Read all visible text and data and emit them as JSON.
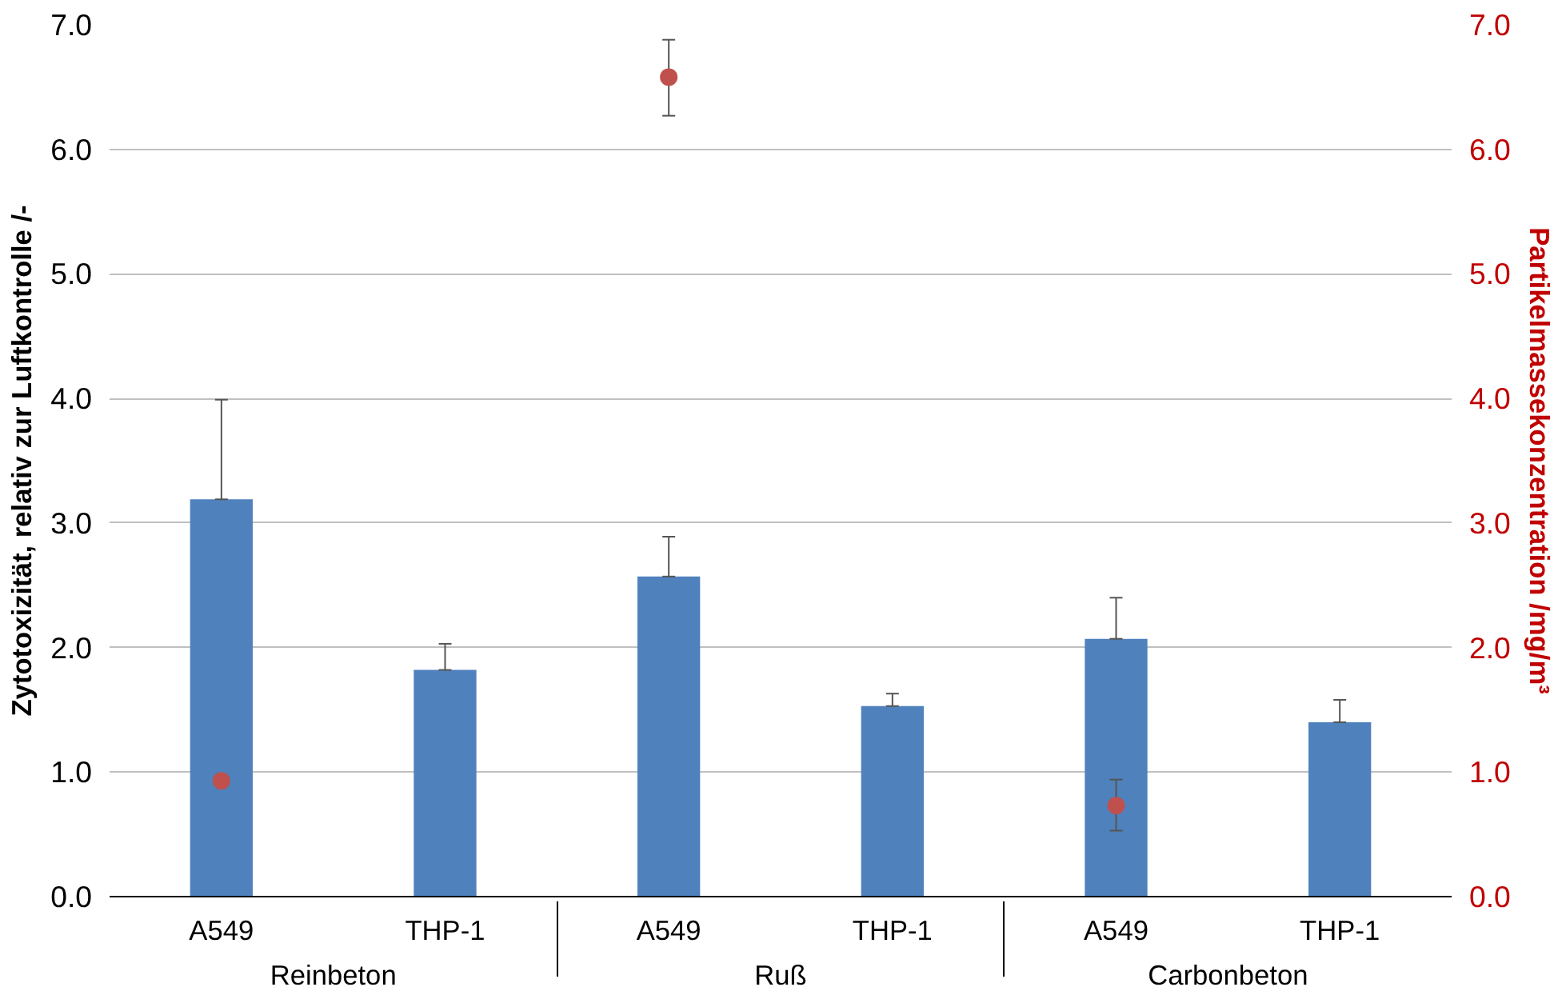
{
  "chart_data": {
    "type": "bar",
    "ylabel": "Zytotoxizität, relativ zur Luftkontrolle /-",
    "y2label": "Partikelmassekonzentration /mg/m³",
    "categories": [
      "A549",
      "THP-1",
      "A549",
      "THP-1",
      "A549",
      "THP-1"
    ],
    "annotations": [
      "Reinbeton",
      "Ruß",
      "Carbonbeton"
    ],
    "series": [
      {
        "color": "#4f81bd",
        "values": [
          3.19,
          1.82,
          2.57,
          1.53,
          2.07,
          1.4
        ],
        "errors": [
          [
            3.19,
            3.99
          ],
          [
            1.82,
            2.03
          ],
          [
            2.57,
            2.89
          ],
          [
            1.53,
            1.63
          ],
          [
            2.07,
            2.4
          ],
          [
            1.4,
            1.58
          ]
        ]
      },
      {
        "type": "scatter",
        "axis": "y2",
        "color": "#c0504d",
        "marker": "circle",
        "values": [
          0.93,
          null,
          6.58,
          null,
          0.73,
          null
        ],
        "errors": [
          null,
          null,
          [
            6.27,
            6.88
          ],
          null,
          [
            0.53,
            0.94
          ],
          null
        ]
      }
    ],
    "ylim": [
      0,
      7
    ],
    "yticks": [
      {
        "value": 0,
        "label": "0.0"
      },
      {
        "value": 1,
        "label": "1.0"
      },
      {
        "value": 2,
        "label": "2.0"
      },
      {
        "value": 3,
        "label": "3.0"
      },
      {
        "value": 4,
        "label": "4.0"
      },
      {
        "value": 5,
        "label": "5.0"
      },
      {
        "value": 6,
        "label": "6.0"
      },
      {
        "value": 7,
        "label": "7.0"
      }
    ],
    "y2lim": [
      0,
      7
    ],
    "y2ticks": [
      {
        "value": 0,
        "label": "0.0"
      },
      {
        "value": 1,
        "label": "1.0"
      },
      {
        "value": 2,
        "label": "2.0"
      },
      {
        "value": 3,
        "label": "3.0"
      },
      {
        "value": 4,
        "label": "4.0"
      },
      {
        "value": 5,
        "label": "5.0"
      },
      {
        "value": 6,
        "label": "6.0"
      },
      {
        "value": 7,
        "label": "7.0"
      }
    ],
    "grid": "y"
  }
}
